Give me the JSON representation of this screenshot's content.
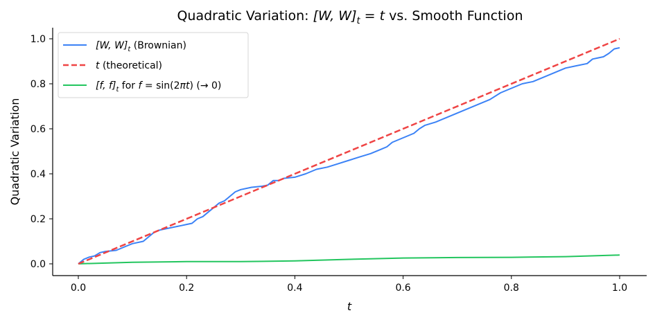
{
  "chart_data": {
    "type": "line",
    "title": "Quadratic Variation: [W, W]_t = t vs. Smooth Function",
    "title_parts": {
      "prefix": "Quadratic Variation: ",
      "math": "[W, W]",
      "sub": "t",
      "mid": " = ",
      "t": "t",
      "suffix": " vs. Smooth Function"
    },
    "xlabel": "t",
    "ylabel": "Quadratic Variation",
    "xlim": [
      -0.05,
      1.05
    ],
    "ylim": [
      -0.05,
      1.05
    ],
    "xticks": [
      0.0,
      0.2,
      0.4,
      0.6,
      0.8,
      1.0
    ],
    "xtick_labels": [
      "0.0",
      "0.2",
      "0.4",
      "0.6",
      "0.8",
      "1.0"
    ],
    "yticks": [
      0.0,
      0.2,
      0.4,
      0.6,
      0.8,
      1.0
    ],
    "ytick_labels": [
      "0.0",
      "0.2",
      "0.4",
      "0.6",
      "0.8",
      "1.0"
    ],
    "grid": false,
    "legend_position": "upper left",
    "series": [
      {
        "name": "[W, W]_t (Brownian)",
        "color": "#3b82f6",
        "style": "solid",
        "x": [
          0.0,
          0.01,
          0.02,
          0.03,
          0.04,
          0.05,
          0.07,
          0.09,
          0.1,
          0.12,
          0.13,
          0.14,
          0.15,
          0.17,
          0.19,
          0.2,
          0.21,
          0.22,
          0.23,
          0.24,
          0.25,
          0.26,
          0.27,
          0.28,
          0.29,
          0.3,
          0.32,
          0.34,
          0.35,
          0.36,
          0.37,
          0.38,
          0.4,
          0.42,
          0.44,
          0.46,
          0.48,
          0.5,
          0.52,
          0.54,
          0.56,
          0.57,
          0.58,
          0.6,
          0.62,
          0.63,
          0.64,
          0.66,
          0.68,
          0.7,
          0.72,
          0.74,
          0.76,
          0.78,
          0.8,
          0.82,
          0.84,
          0.86,
          0.88,
          0.9,
          0.92,
          0.94,
          0.95,
          0.96,
          0.97,
          0.98,
          0.99,
          1.0
        ],
        "values": [
          0.0,
          0.02,
          0.03,
          0.035,
          0.05,
          0.055,
          0.06,
          0.08,
          0.09,
          0.1,
          0.12,
          0.14,
          0.15,
          0.16,
          0.17,
          0.175,
          0.18,
          0.2,
          0.21,
          0.23,
          0.25,
          0.27,
          0.28,
          0.3,
          0.32,
          0.33,
          0.34,
          0.345,
          0.35,
          0.37,
          0.37,
          0.38,
          0.385,
          0.4,
          0.42,
          0.43,
          0.445,
          0.46,
          0.475,
          0.49,
          0.51,
          0.52,
          0.54,
          0.56,
          0.58,
          0.6,
          0.615,
          0.63,
          0.65,
          0.67,
          0.69,
          0.71,
          0.73,
          0.76,
          0.78,
          0.8,
          0.81,
          0.83,
          0.85,
          0.87,
          0.88,
          0.89,
          0.91,
          0.915,
          0.92,
          0.935,
          0.955,
          0.96
        ]
      },
      {
        "name": "t (theoretical)",
        "color": "#ef4444",
        "style": "dashed",
        "x": [
          0.0,
          1.0
        ],
        "values": [
          0.0,
          1.0
        ]
      },
      {
        "name": "[f, f]_t for f = sin(2πt) (→ 0)",
        "color": "#22c55e",
        "style": "solid",
        "x": [
          0.0,
          0.1,
          0.2,
          0.3,
          0.4,
          0.5,
          0.6,
          0.7,
          0.8,
          0.9,
          1.0
        ],
        "values": [
          0.0,
          0.007,
          0.01,
          0.01,
          0.013,
          0.02,
          0.026,
          0.028,
          0.029,
          0.032,
          0.039
        ]
      }
    ]
  },
  "legend": {
    "items": [
      {
        "math": "[W, W]",
        "sub": "t",
        "rest": " (Brownian)"
      },
      {
        "math": "t",
        "rest": " (theoretical)"
      },
      {
        "math": "[f, f]",
        "sub": "t",
        "rest": " for ",
        "math2": "f",
        "rest2": " = sin(2",
        "pi": "π",
        "math3": "t",
        "rest3": ") (→ 0)"
      }
    ]
  }
}
